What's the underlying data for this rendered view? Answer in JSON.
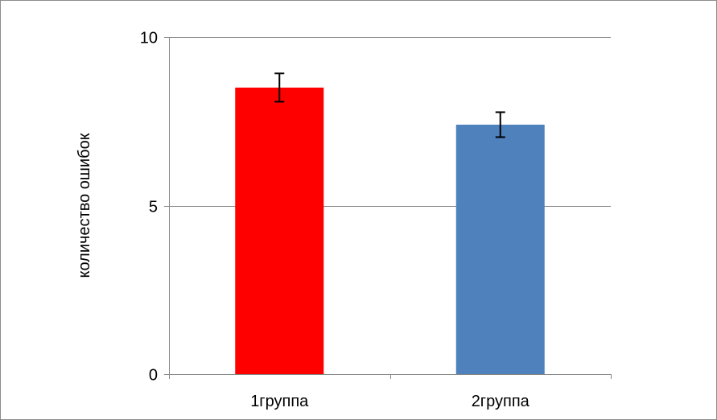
{
  "chart_data": {
    "type": "bar",
    "title": "",
    "xlabel": "",
    "ylabel": "количество ошибок",
    "categories": [
      "1группа",
      "2группа"
    ],
    "values": [
      8.5,
      7.4
    ],
    "error": [
      0.42,
      0.37
    ],
    "colors": [
      "#ff0000",
      "#4f81bd"
    ],
    "ylim": [
      0,
      10
    ],
    "yticks": [
      0,
      5,
      10
    ],
    "y_tick_labels": [
      "0",
      "5",
      "10"
    ],
    "grid": true,
    "legend": "none"
  }
}
